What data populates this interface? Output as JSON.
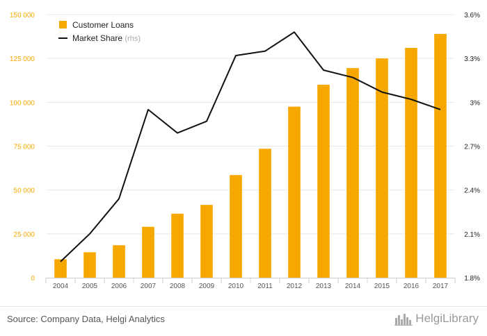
{
  "chart_data": {
    "type": "bar",
    "title": "",
    "categories": [
      "2004",
      "2005",
      "2006",
      "2007",
      "2008",
      "2009",
      "2010",
      "2011",
      "2012",
      "2013",
      "2014",
      "2015",
      "2016",
      "2017"
    ],
    "series": [
      {
        "name": "Customer Loans",
        "type": "bar",
        "axis": "left",
        "color": "#f7a800",
        "values": [
          10500,
          14500,
          18500,
          29000,
          36500,
          41500,
          58500,
          73500,
          97500,
          110000,
          119500,
          125000,
          131000,
          139000
        ]
      },
      {
        "name": "Market Share",
        "legend_suffix": "(rhs)",
        "type": "line",
        "axis": "right",
        "unit": "%",
        "color": "#111111",
        "values": [
          1.91,
          2.1,
          2.34,
          2.95,
          2.79,
          2.87,
          3.32,
          3.35,
          3.48,
          3.22,
          3.17,
          3.07,
          3.02,
          2.95
        ]
      }
    ],
    "y_left": {
      "min": 0,
      "max": 150000,
      "ticks": [
        0,
        25000,
        50000,
        75000,
        100000,
        125000,
        150000
      ],
      "tick_labels": [
        "0",
        "25 000",
        "50 000",
        "75 000",
        "100 000",
        "125 000",
        "150 000"
      ]
    },
    "y_right": {
      "min": 1.8,
      "max": 3.6,
      "ticks": [
        1.8,
        2.1,
        2.4,
        2.7,
        3.0,
        3.3,
        3.6
      ],
      "tick_labels": [
        "1.8%",
        "2.1%",
        "2.4%",
        "2.7%",
        "3%",
        "3.3%",
        "3.6%"
      ]
    },
    "xlabel": "",
    "ylabel": "",
    "grid": "horizontal",
    "legend_position": "top-left",
    "colors": {
      "left_axis_text": "#f7a800",
      "right_axis_text": "#222222",
      "grid": "#e8e8e8",
      "x_tick_text": "#555555",
      "legend_suffix": "#aaaaaa"
    }
  },
  "footer": {
    "source": "Source: Company Data, Helgi Analytics",
    "brand": "HelgiLibrary",
    "brand_icon": "city-skyline-icon"
  }
}
